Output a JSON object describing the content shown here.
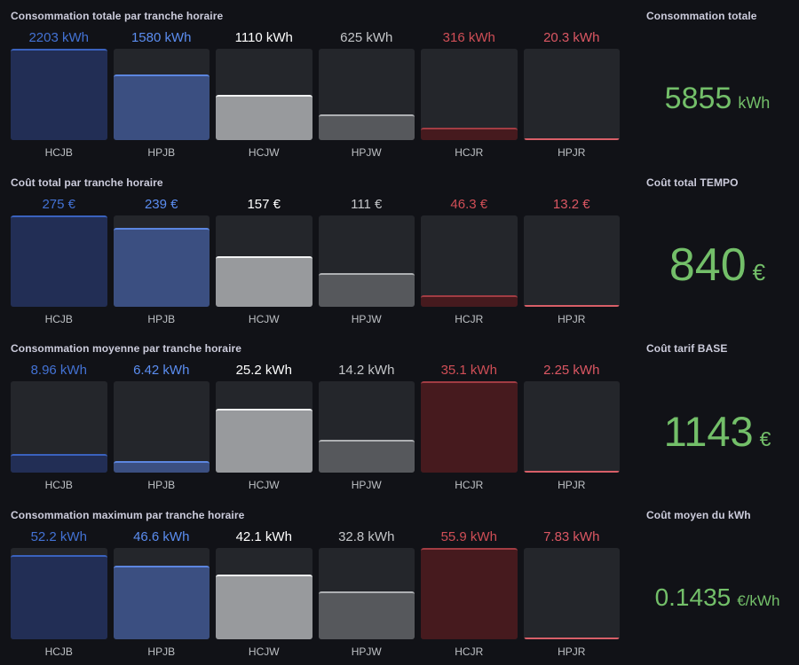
{
  "theme": {
    "background": "#111217",
    "track_color": "#24262B",
    "title_color": "#CCCCDC",
    "bar_label_color": "#BDC0C4",
    "stat_color": "#73BF69"
  },
  "fields": {
    "HCJB": {
      "text_color": "#4372D4",
      "border_color": "#3A62BE",
      "fill_color": "#222E55"
    },
    "HPJB": {
      "text_color": "#5B8DF0",
      "border_color": "#5C86E0",
      "fill_color": "#3B4F81"
    },
    "HCJW": {
      "text_color": "#FFFFFF",
      "border_color": "#F2F3F4",
      "fill_color": "#989A9D"
    },
    "HPJW": {
      "text_color": "#C4C6C9",
      "border_color": "#AEB0B3",
      "fill_color": "#56585C"
    },
    "HCJR": {
      "text_color": "#D04E56",
      "border_color": "#A23C43",
      "fill_color": "#461A1E"
    },
    "HPJR": {
      "text_color": "#DB5763",
      "border_color": "#D85F68",
      "fill_color": "#3C2025"
    }
  },
  "bar_panels": [
    {
      "title": "Consommation totale par tranche horaire",
      "unit": "kWh",
      "bars": [
        {
          "label": "HCJB",
          "value": 2203,
          "value_text": "2203 kWh"
        },
        {
          "label": "HPJB",
          "value": 1580,
          "value_text": "1580 kWh"
        },
        {
          "label": "HCJW",
          "value": 1110,
          "value_text": "1110 kWh"
        },
        {
          "label": "HPJW",
          "value": 625,
          "value_text": "625 kWh"
        },
        {
          "label": "HCJR",
          "value": 316,
          "value_text": "316 kWh"
        },
        {
          "label": "HPJR",
          "value": 20.3,
          "value_text": "20.3 kWh"
        }
      ]
    },
    {
      "title": "Coût total par tranche horaire",
      "unit": "€",
      "bars": [
        {
          "label": "HCJB",
          "value": 275,
          "value_text": "275 €"
        },
        {
          "label": "HPJB",
          "value": 239,
          "value_text": "239 €"
        },
        {
          "label": "HCJW",
          "value": 157,
          "value_text": "157 €"
        },
        {
          "label": "HPJW",
          "value": 111,
          "value_text": "111 €"
        },
        {
          "label": "HCJR",
          "value": 46.3,
          "value_text": "46.3 €"
        },
        {
          "label": "HPJR",
          "value": 13.2,
          "value_text": "13.2 €"
        }
      ]
    },
    {
      "title": "Consommation moyenne par tranche horaire",
      "unit": "kWh",
      "bars": [
        {
          "label": "HCJB",
          "value": 8.96,
          "value_text": "8.96 kWh"
        },
        {
          "label": "HPJB",
          "value": 6.42,
          "value_text": "6.42 kWh"
        },
        {
          "label": "HCJW",
          "value": 25.2,
          "value_text": "25.2 kWh"
        },
        {
          "label": "HPJW",
          "value": 14.2,
          "value_text": "14.2 kWh"
        },
        {
          "label": "HCJR",
          "value": 35.1,
          "value_text": "35.1 kWh"
        },
        {
          "label": "HPJR",
          "value": 2.25,
          "value_text": "2.25 kWh"
        }
      ]
    },
    {
      "title": "Consommation maximum par tranche horaire",
      "unit": "kWh",
      "bars": [
        {
          "label": "HCJB",
          "value": 52.2,
          "value_text": "52.2 kWh"
        },
        {
          "label": "HPJB",
          "value": 46.6,
          "value_text": "46.6 kWh"
        },
        {
          "label": "HCJW",
          "value": 42.1,
          "value_text": "42.1 kWh"
        },
        {
          "label": "HPJW",
          "value": 32.8,
          "value_text": "32.8 kWh"
        },
        {
          "label": "HCJR",
          "value": 55.9,
          "value_text": "55.9 kWh"
        },
        {
          "label": "HPJR",
          "value": 7.83,
          "value_text": "7.83 kWh"
        }
      ]
    }
  ],
  "stat_panels": [
    {
      "title": "Consommation totale",
      "number": "5855",
      "unit": "kWh"
    },
    {
      "title": "Coût total TEMPO",
      "number": "840",
      "unit": "€"
    },
    {
      "title": "Coût tarif BASE",
      "number": "1143",
      "unit": "€"
    },
    {
      "title": "Coût moyen du kWh",
      "number": "0.1435",
      "unit": "€/kWh"
    }
  ],
  "chart_data": [
    {
      "type": "bar",
      "title": "Consommation totale par tranche horaire",
      "categories": [
        "HCJB",
        "HPJB",
        "HCJW",
        "HPJW",
        "HCJR",
        "HPJR"
      ],
      "values": [
        2203,
        1580,
        1110,
        625,
        316,
        20.3
      ],
      "xlabel": "",
      "ylabel": "kWh",
      "ylim": [
        20.3,
        2203
      ]
    },
    {
      "type": "bar",
      "title": "Coût total par tranche horaire",
      "categories": [
        "HCJB",
        "HPJB",
        "HCJW",
        "HPJW",
        "HCJR",
        "HPJR"
      ],
      "values": [
        275,
        239,
        157,
        111,
        46.3,
        13.2
      ],
      "xlabel": "",
      "ylabel": "€",
      "ylim": [
        13.2,
        275
      ]
    },
    {
      "type": "bar",
      "title": "Consommation moyenne par tranche horaire",
      "categories": [
        "HCJB",
        "HPJB",
        "HCJW",
        "HPJW",
        "HCJR",
        "HPJR"
      ],
      "values": [
        8.96,
        6.42,
        25.2,
        14.2,
        35.1,
        2.25
      ],
      "xlabel": "",
      "ylabel": "kWh",
      "ylim": [
        2.25,
        35.1
      ]
    },
    {
      "type": "bar",
      "title": "Consommation maximum par tranche horaire",
      "categories": [
        "HCJB",
        "HPJB",
        "HCJW",
        "HPJW",
        "HCJR",
        "HPJR"
      ],
      "values": [
        52.2,
        46.6,
        42.1,
        32.8,
        55.9,
        7.83
      ],
      "xlabel": "",
      "ylabel": "kWh",
      "ylim": [
        7.83,
        55.9
      ]
    }
  ]
}
